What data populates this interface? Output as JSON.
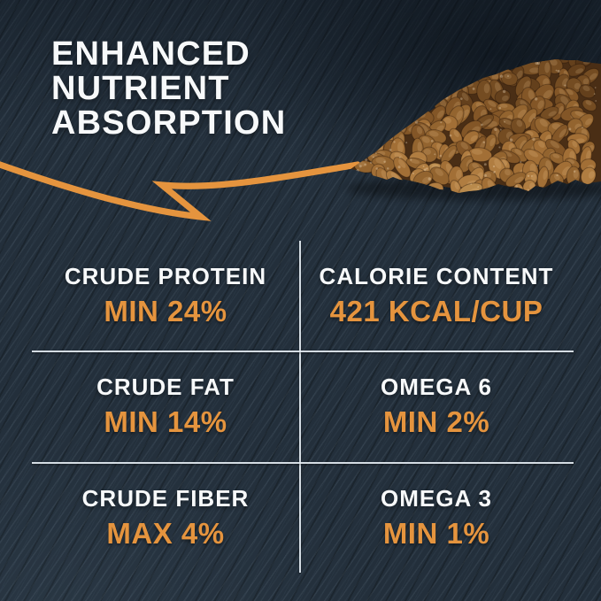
{
  "header": {
    "title_lines": [
      "ENHANCED",
      "NUTRIENT",
      "ABSORPTION"
    ]
  },
  "nutrition": {
    "cells": [
      {
        "label": "CRUDE PROTEIN",
        "value": "MIN 24%"
      },
      {
        "label": "CALORIE CONTENT",
        "value": "421 KCAL/CUP"
      },
      {
        "label": "CRUDE FAT",
        "value": "MIN 14%"
      },
      {
        "label": "OMEGA 6",
        "value": "MIN 2%"
      },
      {
        "label": "CRUDE FIBER",
        "value": "MAX 4%"
      },
      {
        "label": "OMEGA 3",
        "value": "MIN 1%"
      }
    ]
  },
  "colors": {
    "accent_orange": "#e5943e",
    "background_navy": "#232f3b",
    "text_white": "#f7f9fa",
    "divider_white": "rgba(228,236,242,0.92)",
    "kibble_palette": [
      "#553517",
      "#64401c",
      "#744c22",
      "#835627",
      "#93642f",
      "#a26f36",
      "#b07d41",
      "#b98a4c"
    ]
  },
  "graphics": {
    "arrow_name": "hand-drawn-arrow",
    "kibble_name": "kibble-pile"
  }
}
